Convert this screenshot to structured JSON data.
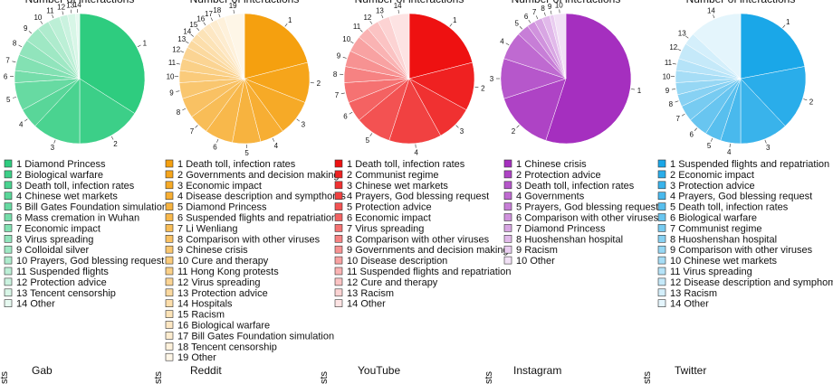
{
  "chart_data": [
    {
      "type": "pie",
      "title": "Number of interactions",
      "color": "#2ecc7f",
      "labels": [
        "1",
        "2",
        "3",
        "4",
        "5",
        "6",
        "7",
        "8",
        "9",
        "10",
        "11",
        "12",
        "13",
        "14"
      ],
      "categories": [
        "Diamond Princess",
        "Biological warfare",
        "Death toll, infection rates",
        "Chinese wet markets",
        "Bill Gates Foundation simulation",
        "Mass cremation in Wuhan",
        "Economic impact",
        "Virus spreading",
        "Colloidal silver",
        "Prayers, God blessing request",
        "Suspended flights",
        "Protection advice",
        "Tencent censorship",
        "Other"
      ],
      "values": [
        34,
        16,
        12,
        5,
        7,
        3,
        4,
        4,
        4,
        3,
        3,
        2,
        2,
        1
      ]
    },
    {
      "type": "pie",
      "title": "Number of interactions",
      "color": "#f5a00f",
      "labels": [
        "1",
        "2",
        "3",
        "4",
        "5",
        "6",
        "7",
        "8",
        "9",
        "10",
        "11",
        "12",
        "13",
        "14",
        "15",
        "16",
        "17",
        "18",
        "19"
      ],
      "categories": [
        "Death toll, infection rates",
        "Governments and decision making",
        "Economic impact",
        "Disease description and sympthoms",
        "Diamond Princess",
        "Suspended flights and repatriation",
        "Li Wenliang",
        "Comparison with other viruses",
        "Chinese crisis",
        "Cure and therapy",
        "Hong Kong protests",
        "Virus spreading",
        "Protection advice",
        "Hospitals",
        "Racism",
        "Biological warfare",
        "Bill Gates Foundation simulation",
        "Tencent censorship",
        "Other"
      ],
      "values": [
        21,
        10,
        9,
        6,
        7,
        7,
        5,
        5,
        4,
        3,
        3,
        3,
        2,
        2,
        2,
        2,
        2,
        2,
        5
      ]
    },
    {
      "type": "pie",
      "title": "Number of interactions",
      "color": "#ee1111",
      "labels": [
        "1",
        "2",
        "3",
        "4",
        "5",
        "6",
        "7",
        "8",
        "9",
        "10",
        "11",
        "12",
        "13",
        "14"
      ],
      "categories": [
        "Death toll, infection rates",
        "Communist regime",
        "Chinese wet markets",
        "Prayers, God blessing request",
        "Protection advice",
        "Economic impact",
        "Virus spreading",
        "Comparison with other viruses",
        "Governments and decision making",
        "Disease description",
        "Suspended flights and repatriation",
        "Cure and therapy",
        "Racism",
        "Other"
      ],
      "values": [
        21,
        12,
        9,
        13,
        9,
        5,
        5,
        4,
        4,
        4,
        3,
        3,
        3,
        5
      ]
    },
    {
      "type": "pie",
      "title": "Number of interactions",
      "color": "#a52fbf",
      "labels": [
        "1",
        "2",
        "3",
        "4",
        "5",
        "6",
        "7",
        "8",
        "9",
        "10"
      ],
      "categories": [
        "Chinese crisis",
        "Protection advice",
        "Death toll, infection rates",
        "Governments",
        "Prayers, God blessing request",
        "Comparison with other viruses",
        "Diamond Princess",
        "Huoshenshan hospital",
        "Racism",
        "Other"
      ],
      "values": [
        55,
        15,
        10,
        7,
        3,
        2,
        2,
        2,
        1,
        3
      ]
    },
    {
      "type": "pie",
      "title": "Number of interactions",
      "color": "#1aa7e8",
      "labels": [
        "1",
        "2",
        "3",
        "4",
        "5",
        "6",
        "7",
        "8",
        "9",
        "10",
        "11",
        "12",
        "13",
        "14"
      ],
      "categories": [
        "Suspended flights and repatriation",
        "Economic impact",
        "Protection advice",
        "Prayers, God blessing request",
        "Death toll, infection rates",
        "Biological warfare",
        "Communist regime",
        "Huoshenshan hospital",
        "Comparison with other viruses",
        "Chinese wet markets",
        "Virus spreading",
        "Disease description and symphoms",
        "Racism",
        "Other"
      ],
      "values": [
        22,
        16,
        12,
        5,
        4,
        5,
        4,
        3,
        3,
        3,
        3,
        4,
        3,
        13
      ]
    },
    {
      "type": "bar",
      "title": "Gab",
      "ylabel": "sts"
    },
    {
      "type": "bar",
      "title": "Reddit",
      "ylabel": "sts"
    },
    {
      "type": "bar",
      "title": "YouTube",
      "ylabel": "sts"
    },
    {
      "type": "bar",
      "title": "Instagram",
      "ylabel": "sts"
    },
    {
      "type": "bar",
      "title": "Twitter",
      "ylabel": "sts"
    }
  ]
}
